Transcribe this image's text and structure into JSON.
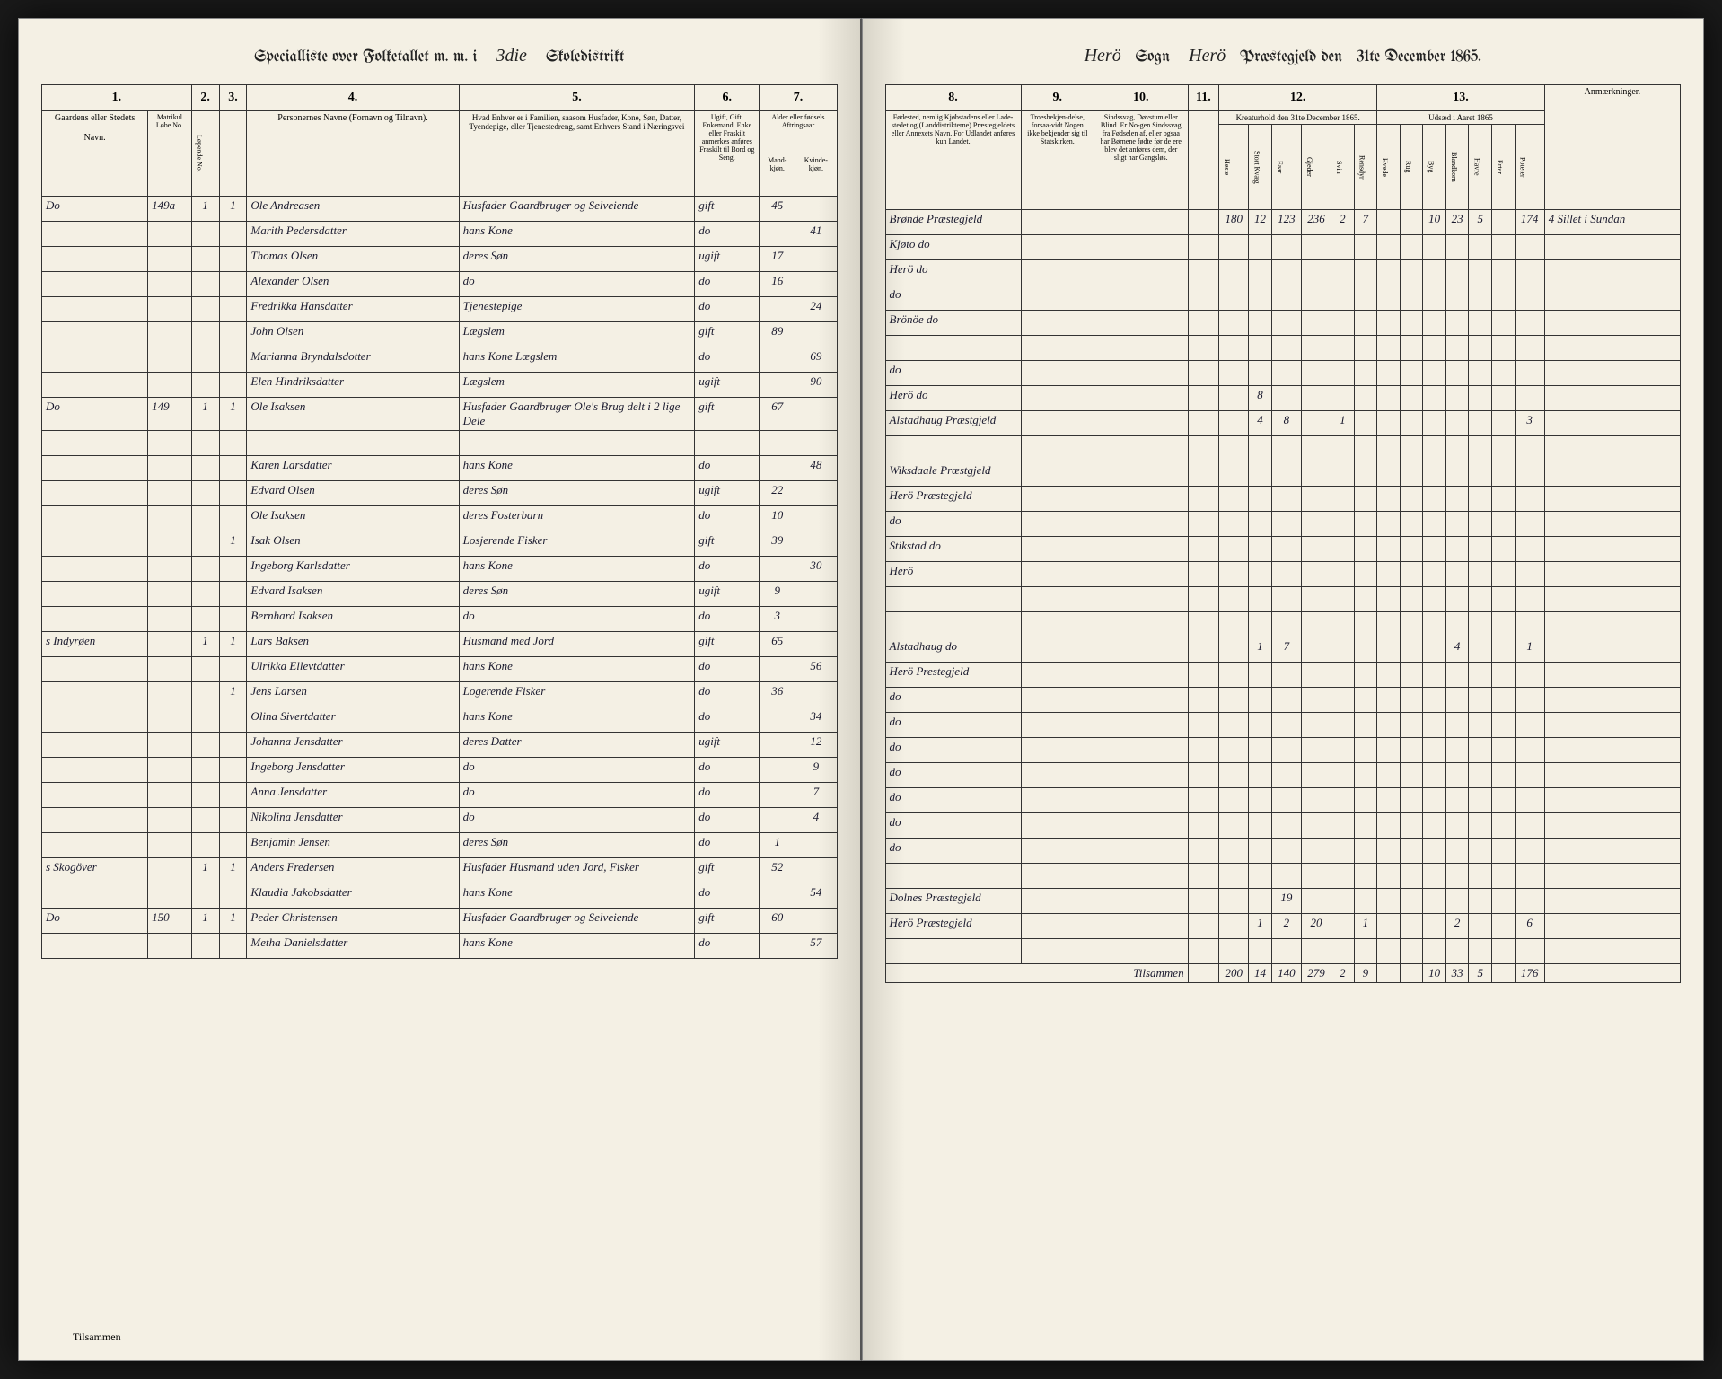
{
  "header_left": {
    "prefix": "Specialliste over Folketallet m. m. i",
    "district_num": "3die",
    "suffix": "Skoledistrikt"
  },
  "header_right": {
    "sogn_label": "Sogn",
    "sogn_value": "Herö",
    "prestegjeld_label": "Præstegjeld den",
    "prestegjeld_value": "Herö",
    "date": "31te December 1865."
  },
  "columns_left": {
    "c1": "1.",
    "c2": "2.",
    "c3": "3.",
    "c4": "4.",
    "c5": "5.",
    "c6": "6.",
    "c7": "7."
  },
  "columns_right": {
    "c8": "8.",
    "c9": "9.",
    "c10": "10.",
    "c11": "11.",
    "c12": "12.",
    "c13": "13."
  },
  "col_headers_left": {
    "h1": "Gaardens eller Stedets",
    "h1b": "Navn.",
    "h1c": "Matrikul Løbe No.",
    "h2": "Løpende No.",
    "h3": "",
    "h4": "Personernes Navne (Fornavn og Tilnavn).",
    "h5": "Hvad Enhver er i Familien, saasom Husfader, Kone, Søn, Datter, Tyendepige, eller Tjenestedreng, samt Enhvers Stand i Næringsvei",
    "h6": "Ugift, Gift, Enkemand, Enke eller Fraskilt anmerkes anføres Fraskilt til Bord og Seng.",
    "h7a": "Alder eller fødsels Aftringsaar",
    "h7b": "Mand-kjøn.",
    "h7c": "Kvinde-kjøn."
  },
  "col_headers_right": {
    "h8": "Fødested, nemlig Kjøbstadens eller Lade-stedet og (Landdistrikterne) Præstegjeldets eller Annexets Navn. For Udlandet anføres kun Landet.",
    "h9": "Troesbekjen-delse, forsaa-vidt Nogen ikke bekjender sig til Statskirken.",
    "h10": "Sindssvag, Døvstum eller Blind. Er No-gen Sindssvag fra Fødselen af, eller ogsaa har Børnene fødte før de ere blev det anføres dem, der sligt har Gangsløs.",
    "h11": "",
    "h12": "Kreaturhold den 31te December 1865.",
    "h13": "Udsæd i Aaret 1865",
    "h14": "Anmærkninger.",
    "sub12": [
      "Heste",
      "Stort Kvæg",
      "Faar",
      "Gjeder",
      "Svin",
      "Rensdyr"
    ],
    "sub13": [
      "Hvede",
      "Rug",
      "Byg",
      "Blandkorn",
      "Havre",
      "Erter",
      "Poteter"
    ]
  },
  "rows_left": [
    {
      "place": "Do",
      "mat": "149a",
      "num": "1",
      "num2": "1",
      "name": "Ole Andreasen",
      "role": "Husfader Gaardbruger og Selveiende",
      "status": "gift",
      "m": "45",
      "f": ""
    },
    {
      "place": "",
      "mat": "",
      "num": "",
      "num2": "",
      "name": "Marith Pedersdatter",
      "role": "hans Kone",
      "status": "do",
      "m": "",
      "f": "41"
    },
    {
      "place": "",
      "mat": "",
      "num": "",
      "num2": "",
      "name": "Thomas Olsen",
      "role": "deres Søn",
      "status": "ugift",
      "m": "17",
      "f": ""
    },
    {
      "place": "",
      "mat": "",
      "num": "",
      "num2": "",
      "name": "Alexander Olsen",
      "role": "do",
      "status": "do",
      "m": "16",
      "f": ""
    },
    {
      "place": "",
      "mat": "",
      "num": "",
      "num2": "",
      "name": "Fredrikka Hansdatter",
      "role": "Tjenestepige",
      "status": "do",
      "m": "",
      "f": "24"
    },
    {
      "place": "",
      "mat": "",
      "num": "",
      "num2": "",
      "name": "John Olsen",
      "role": "Lægslem",
      "status": "gift",
      "m": "89",
      "f": ""
    },
    {
      "place": "",
      "mat": "",
      "num": "",
      "num2": "",
      "name": "Marianna Bryndalsdotter",
      "role": "hans Kone Lægslem",
      "status": "do",
      "m": "",
      "f": "69"
    },
    {
      "place": "",
      "mat": "",
      "num": "",
      "num2": "",
      "name": "Elen Hindriksdatter",
      "role": "Lægslem",
      "status": "ugift",
      "m": "",
      "f": "90"
    },
    {
      "place": "Do",
      "mat": "149",
      "num": "1",
      "num2": "1",
      "name": "Ole Isaksen",
      "role": "Husfader Gaardbruger Ole's Brug delt i 2 lige Dele",
      "status": "gift",
      "m": "67",
      "f": ""
    },
    {
      "place": "",
      "mat": "",
      "num": "",
      "num2": "",
      "name": "",
      "role": "",
      "status": "",
      "m": "",
      "f": ""
    },
    {
      "place": "",
      "mat": "",
      "num": "",
      "num2": "",
      "name": "Karen Larsdatter",
      "role": "hans Kone",
      "status": "do",
      "m": "",
      "f": "48"
    },
    {
      "place": "",
      "mat": "",
      "num": "",
      "num2": "",
      "name": "Edvard Olsen",
      "role": "deres Søn",
      "status": "ugift",
      "m": "22",
      "f": ""
    },
    {
      "place": "",
      "mat": "",
      "num": "",
      "num2": "",
      "name": "Ole Isaksen",
      "role": "deres Fosterbarn",
      "status": "do",
      "m": "10",
      "f": ""
    },
    {
      "place": "",
      "mat": "",
      "num": "",
      "num2": "1",
      "name": "Isak Olsen",
      "role": "Losjerende Fisker",
      "status": "gift",
      "m": "39",
      "f": ""
    },
    {
      "place": "",
      "mat": "",
      "num": "",
      "num2": "",
      "name": "Ingeborg Karlsdatter",
      "role": "hans Kone",
      "status": "do",
      "m": "",
      "f": "30"
    },
    {
      "place": "",
      "mat": "",
      "num": "",
      "num2": "",
      "name": "Edvard Isaksen",
      "role": "deres Søn",
      "status": "ugift",
      "m": "9",
      "f": ""
    },
    {
      "place": "",
      "mat": "",
      "num": "",
      "num2": "",
      "name": "Bernhard Isaksen",
      "role": "do",
      "status": "do",
      "m": "3",
      "f": ""
    },
    {
      "place": "s Indyrøen",
      "mat": "",
      "num": "1",
      "num2": "1",
      "name": "Lars Baksen",
      "role": "Husmand med Jord",
      "status": "gift",
      "m": "65",
      "f": ""
    },
    {
      "place": "",
      "mat": "",
      "num": "",
      "num2": "",
      "name": "Ulrikka Ellevtdatter",
      "role": "hans Kone",
      "status": "do",
      "m": "",
      "f": "56"
    },
    {
      "place": "",
      "mat": "",
      "num": "",
      "num2": "1",
      "name": "Jens Larsen",
      "role": "Logerende Fisker",
      "status": "do",
      "m": "36",
      "f": ""
    },
    {
      "place": "",
      "mat": "",
      "num": "",
      "num2": "",
      "name": "Olina Sivertdatter",
      "role": "hans Kone",
      "status": "do",
      "m": "",
      "f": "34"
    },
    {
      "place": "",
      "mat": "",
      "num": "",
      "num2": "",
      "name": "Johanna Jensdatter",
      "role": "deres Datter",
      "status": "ugift",
      "m": "",
      "f": "12"
    },
    {
      "place": "",
      "mat": "",
      "num": "",
      "num2": "",
      "name": "Ingeborg Jensdatter",
      "role": "do",
      "status": "do",
      "m": "",
      "f": "9"
    },
    {
      "place": "",
      "mat": "",
      "num": "",
      "num2": "",
      "name": "Anna Jensdatter",
      "role": "do",
      "status": "do",
      "m": "",
      "f": "7"
    },
    {
      "place": "",
      "mat": "",
      "num": "",
      "num2": "",
      "name": "Nikolina Jensdatter",
      "role": "do",
      "status": "do",
      "m": "",
      "f": "4"
    },
    {
      "place": "",
      "mat": "",
      "num": "",
      "num2": "",
      "name": "Benjamin Jensen",
      "role": "deres Søn",
      "status": "do",
      "m": "1",
      "f": ""
    },
    {
      "place": "s Skogöver",
      "mat": "",
      "num": "1",
      "num2": "1",
      "name": "Anders Fredersen",
      "role": "Husfader Husmand uden Jord, Fisker",
      "status": "gift",
      "m": "52",
      "f": ""
    },
    {
      "place": "",
      "mat": "",
      "num": "",
      "num2": "",
      "name": "Klaudia Jakobsdatter",
      "role": "hans Kone",
      "status": "do",
      "m": "",
      "f": "54"
    },
    {
      "place": "Do",
      "mat": "150",
      "num": "1",
      "num2": "1",
      "name": "Peder Christensen",
      "role": "Husfader Gaardbruger og Selveiende",
      "status": "gift",
      "m": "60",
      "f": ""
    },
    {
      "place": "",
      "mat": "",
      "num": "",
      "num2": "",
      "name": "Metha Danielsdatter",
      "role": "hans Kone",
      "status": "do",
      "m": "",
      "f": "57"
    }
  ],
  "rows_right": [
    {
      "birthplace": "Brønde Præstegjeld",
      "c11": "",
      "h": "180",
      "sk": "12",
      "f": "123",
      "g": "236",
      "s": "2",
      "r": "7",
      "w": "",
      "ru": "",
      "b": "10",
      "bl": "23",
      "ha": "5",
      "e": "",
      "p": "174",
      "notes": "4 Sillet i Sundan"
    },
    {
      "birthplace": "Kjøto do",
      "c11": "",
      "h": "",
      "sk": "",
      "f": "",
      "g": "",
      "s": "",
      "r": "",
      "w": "",
      "ru": "",
      "b": "",
      "bl": "",
      "ha": "",
      "e": "",
      "p": "",
      "notes": ""
    },
    {
      "birthplace": "Herö do",
      "c11": "",
      "h": "",
      "sk": "",
      "f": "",
      "g": "",
      "s": "",
      "r": "",
      "w": "",
      "ru": "",
      "b": "",
      "bl": "",
      "ha": "",
      "e": "",
      "p": "",
      "notes": ""
    },
    {
      "birthplace": "do",
      "c11": "",
      "h": "",
      "sk": "",
      "f": "",
      "g": "",
      "s": "",
      "r": "",
      "w": "",
      "ru": "",
      "b": "",
      "bl": "",
      "ha": "",
      "e": "",
      "p": "",
      "notes": ""
    },
    {
      "birthplace": "Brönöe do",
      "c11": "",
      "h": "",
      "sk": "",
      "f": "",
      "g": "",
      "s": "",
      "r": "",
      "w": "",
      "ru": "",
      "b": "",
      "bl": "",
      "ha": "",
      "e": "",
      "p": "",
      "notes": ""
    },
    {
      "birthplace": "",
      "c11": "",
      "h": "",
      "sk": "",
      "f": "",
      "g": "",
      "s": "",
      "r": "",
      "w": "",
      "ru": "",
      "b": "",
      "bl": "",
      "ha": "",
      "e": "",
      "p": "",
      "notes": ""
    },
    {
      "birthplace": "do",
      "c11": "",
      "h": "",
      "sk": "",
      "f": "",
      "g": "",
      "s": "",
      "r": "",
      "w": "",
      "ru": "",
      "b": "",
      "bl": "",
      "ha": "",
      "e": "",
      "p": "",
      "notes": ""
    },
    {
      "birthplace": "Herö do",
      "c11": "",
      "h": "",
      "sk": "8",
      "f": "",
      "g": "",
      "s": "",
      "r": "",
      "w": "",
      "ru": "",
      "b": "",
      "bl": "",
      "ha": "",
      "e": "",
      "p": "",
      "notes": ""
    },
    {
      "birthplace": "Alstadhaug Præstgjeld",
      "c11": "",
      "h": "",
      "sk": "4",
      "f": "8",
      "g": "",
      "s": "1",
      "r": "",
      "w": "",
      "ru": "",
      "b": "",
      "bl": "",
      "ha": "",
      "e": "",
      "p": "3",
      "notes": ""
    },
    {
      "birthplace": "",
      "c11": "",
      "h": "",
      "sk": "",
      "f": "",
      "g": "",
      "s": "",
      "r": "",
      "w": "",
      "ru": "",
      "b": "",
      "bl": "",
      "ha": "",
      "e": "",
      "p": "",
      "notes": ""
    },
    {
      "birthplace": "Wiksdaale Præstgjeld",
      "c11": "",
      "h": "",
      "sk": "",
      "f": "",
      "g": "",
      "s": "",
      "r": "",
      "w": "",
      "ru": "",
      "b": "",
      "bl": "",
      "ha": "",
      "e": "",
      "p": "",
      "notes": ""
    },
    {
      "birthplace": "Herö Præstegjeld",
      "c11": "",
      "h": "",
      "sk": "",
      "f": "",
      "g": "",
      "s": "",
      "r": "",
      "w": "",
      "ru": "",
      "b": "",
      "bl": "",
      "ha": "",
      "e": "",
      "p": "",
      "notes": ""
    },
    {
      "birthplace": "do",
      "c11": "",
      "h": "",
      "sk": "",
      "f": "",
      "g": "",
      "s": "",
      "r": "",
      "w": "",
      "ru": "",
      "b": "",
      "bl": "",
      "ha": "",
      "e": "",
      "p": "",
      "notes": ""
    },
    {
      "birthplace": "Stikstad do",
      "c11": "",
      "h": "",
      "sk": "",
      "f": "",
      "g": "",
      "s": "",
      "r": "",
      "w": "",
      "ru": "",
      "b": "",
      "bl": "",
      "ha": "",
      "e": "",
      "p": "",
      "notes": ""
    },
    {
      "birthplace": "Herö",
      "c11": "",
      "h": "",
      "sk": "",
      "f": "",
      "g": "",
      "s": "",
      "r": "",
      "w": "",
      "ru": "",
      "b": "",
      "bl": "",
      "ha": "",
      "e": "",
      "p": "",
      "notes": ""
    },
    {
      "birthplace": "",
      "c11": "",
      "h": "",
      "sk": "",
      "f": "",
      "g": "",
      "s": "",
      "r": "",
      "w": "",
      "ru": "",
      "b": "",
      "bl": "",
      "ha": "",
      "e": "",
      "p": "",
      "notes": ""
    },
    {
      "birthplace": "",
      "c11": "",
      "h": "",
      "sk": "",
      "f": "",
      "g": "",
      "s": "",
      "r": "",
      "w": "",
      "ru": "",
      "b": "",
      "bl": "",
      "ha": "",
      "e": "",
      "p": "",
      "notes": ""
    },
    {
      "birthplace": "Alstadhaug do",
      "c11": "",
      "h": "",
      "sk": "1",
      "f": "7",
      "g": "",
      "s": "",
      "r": "",
      "w": "",
      "ru": "",
      "b": "",
      "bl": "4",
      "ha": "",
      "e": "",
      "p": "1",
      "notes": ""
    },
    {
      "birthplace": "Herö Prestegjeld",
      "c11": "",
      "h": "",
      "sk": "",
      "f": "",
      "g": "",
      "s": "",
      "r": "",
      "w": "",
      "ru": "",
      "b": "",
      "bl": "",
      "ha": "",
      "e": "",
      "p": "",
      "notes": ""
    },
    {
      "birthplace": "do",
      "c11": "",
      "h": "",
      "sk": "",
      "f": "",
      "g": "",
      "s": "",
      "r": "",
      "w": "",
      "ru": "",
      "b": "",
      "bl": "",
      "ha": "",
      "e": "",
      "p": "",
      "notes": ""
    },
    {
      "birthplace": "do",
      "c11": "",
      "h": "",
      "sk": "",
      "f": "",
      "g": "",
      "s": "",
      "r": "",
      "w": "",
      "ru": "",
      "b": "",
      "bl": "",
      "ha": "",
      "e": "",
      "p": "",
      "notes": ""
    },
    {
      "birthplace": "do",
      "c11": "",
      "h": "",
      "sk": "",
      "f": "",
      "g": "",
      "s": "",
      "r": "",
      "w": "",
      "ru": "",
      "b": "",
      "bl": "",
      "ha": "",
      "e": "",
      "p": "",
      "notes": ""
    },
    {
      "birthplace": "do",
      "c11": "",
      "h": "",
      "sk": "",
      "f": "",
      "g": "",
      "s": "",
      "r": "",
      "w": "",
      "ru": "",
      "b": "",
      "bl": "",
      "ha": "",
      "e": "",
      "p": "",
      "notes": ""
    },
    {
      "birthplace": "do",
      "c11": "",
      "h": "",
      "sk": "",
      "f": "",
      "g": "",
      "s": "",
      "r": "",
      "w": "",
      "ru": "",
      "b": "",
      "bl": "",
      "ha": "",
      "e": "",
      "p": "",
      "notes": ""
    },
    {
      "birthplace": "do",
      "c11": "",
      "h": "",
      "sk": "",
      "f": "",
      "g": "",
      "s": "",
      "r": "",
      "w": "",
      "ru": "",
      "b": "",
      "bl": "",
      "ha": "",
      "e": "",
      "p": "",
      "notes": ""
    },
    {
      "birthplace": "do",
      "c11": "",
      "h": "",
      "sk": "",
      "f": "",
      "g": "",
      "s": "",
      "r": "",
      "w": "",
      "ru": "",
      "b": "",
      "bl": "",
      "ha": "",
      "e": "",
      "p": "",
      "notes": ""
    },
    {
      "birthplace": "",
      "c11": "",
      "h": "",
      "sk": "",
      "f": "",
      "g": "",
      "s": "",
      "r": "",
      "w": "",
      "ru": "",
      "b": "",
      "bl": "",
      "ha": "",
      "e": "",
      "p": "",
      "notes": ""
    },
    {
      "birthplace": "Dolnes Præstegjeld",
      "c11": "",
      "h": "",
      "sk": "",
      "f": "19",
      "g": "",
      "s": "",
      "r": "",
      "w": "",
      "ru": "",
      "b": "",
      "bl": "",
      "ha": "",
      "e": "",
      "p": "",
      "notes": ""
    },
    {
      "birthplace": "Herö Præstegjeld",
      "c11": "",
      "h": "",
      "sk": "1",
      "f": "2",
      "g": "20",
      "s": "",
      "r": "1",
      "w": "",
      "ru": "",
      "b": "",
      "bl": "2",
      "ha": "",
      "e": "",
      "p": "6",
      "notes": ""
    },
    {
      "birthplace": "",
      "c11": "",
      "h": "",
      "sk": "",
      "f": "",
      "g": "",
      "s": "",
      "r": "",
      "w": "",
      "ru": "",
      "b": "",
      "bl": "",
      "ha": "",
      "e": "",
      "p": "",
      "notes": ""
    }
  ],
  "totals_right": {
    "label": "Tilsammen",
    "vals": [
      "200",
      "14",
      "140",
      "279",
      "2",
      "9",
      "",
      "",
      "10",
      "33",
      "5",
      "",
      "176"
    ]
  },
  "footer_left": "Tilsammen",
  "colors": {
    "paper": "#f4f0e4",
    "ink": "#1a1a2e",
    "border": "#333333"
  }
}
